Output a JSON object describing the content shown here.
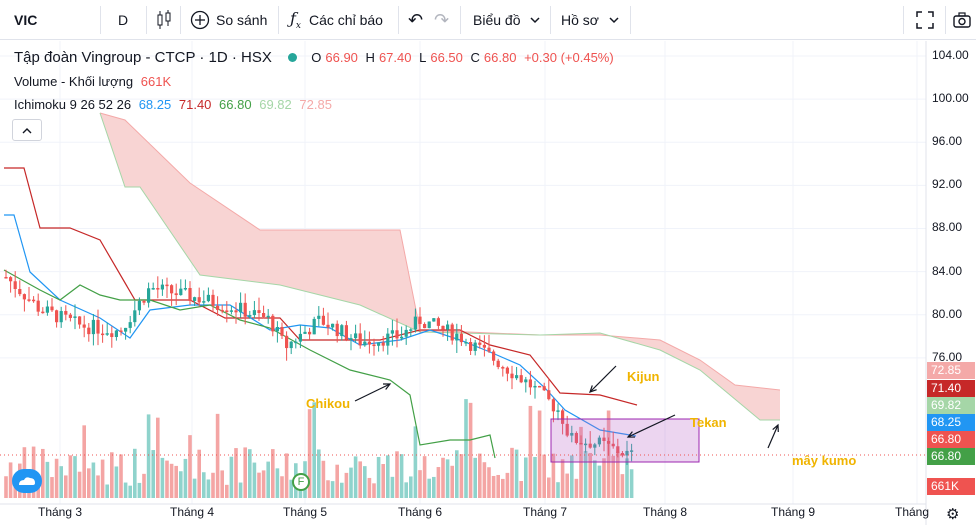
{
  "toolbar": {
    "symbol": "VIC",
    "interval": "D",
    "compare_label": "So sánh",
    "indicators_label": "Các chỉ báo",
    "chart_type_label": "Biểu đồ",
    "profile_label": "Hồ sơ"
  },
  "legend": {
    "title": "Tập đoàn Vingroup - CTCP · 1D · HSX",
    "ohlc": {
      "o_label": "O",
      "o": "66.90",
      "h_label": "H",
      "h": "67.40",
      "l_label": "L",
      "l": "66.50",
      "c_label": "C",
      "c": "66.80",
      "change": "+0.30 (+0.45%)"
    },
    "volume_label": "Volume - Khối lượng",
    "volume_value": "661K",
    "ichimoku_label": "Ichimoku 9 26 52 26",
    "ichimoku_values": [
      "68.25",
      "71.40",
      "66.80",
      "69.82",
      "72.85"
    ]
  },
  "price_axis": [
    "104.00",
    "100.00",
    "96.00",
    "92.00",
    "88.00",
    "84.00",
    "80.00",
    "76.00"
  ],
  "price_labels": [
    {
      "value": "72.85",
      "color": "#f4a9a8"
    },
    {
      "value": "71.40",
      "color": "#c62828"
    },
    {
      "value": "69.82",
      "color": "#a5d6a7"
    },
    {
      "value": "68.25",
      "color": "#2196f3"
    },
    {
      "value": "66.80",
      "color": "#ef5350"
    },
    {
      "value": "66.80",
      "color": "#43a047"
    },
    {
      "value": "661K",
      "color": "#ef5350"
    }
  ],
  "time_axis": [
    "Tháng 3",
    "Tháng 4",
    "Tháng 5",
    "Tháng 6",
    "Tháng 7",
    "Tháng 8",
    "Tháng 9",
    "Tháng"
  ],
  "annotations": {
    "chikou": "Chikou",
    "kijun": "Kijun",
    "tekan": "Tekan",
    "kumo": "mây kumo"
  },
  "event_marker": "F",
  "colors": {
    "up": "#26a69a",
    "down": "#ef5350",
    "tenkan": "#2196f3",
    "kijun": "#c62828",
    "chikou": "#43a047",
    "cloud": "#f8d4d3",
    "highlight": "#e1bee7"
  },
  "chart_data": {
    "type": "candlestick",
    "ylim": [
      64,
      106
    ],
    "x": [
      "2021-02-22",
      "2021-03-15",
      "2021-04-05",
      "2021-04-26",
      "2021-05-17",
      "2021-06-07",
      "2021-06-28",
      "2021-07-19"
    ],
    "close": [
      83.5,
      80.0,
      82.5,
      79.0,
      80.0,
      78.5,
      72.0,
      66.8
    ],
    "tenkan_last": 68.25,
    "kijun_last": 71.4,
    "chikou_last": 66.8,
    "senkou_a_last": 69.82,
    "senkou_b_last": 72.85,
    "volume_last": "661K"
  }
}
